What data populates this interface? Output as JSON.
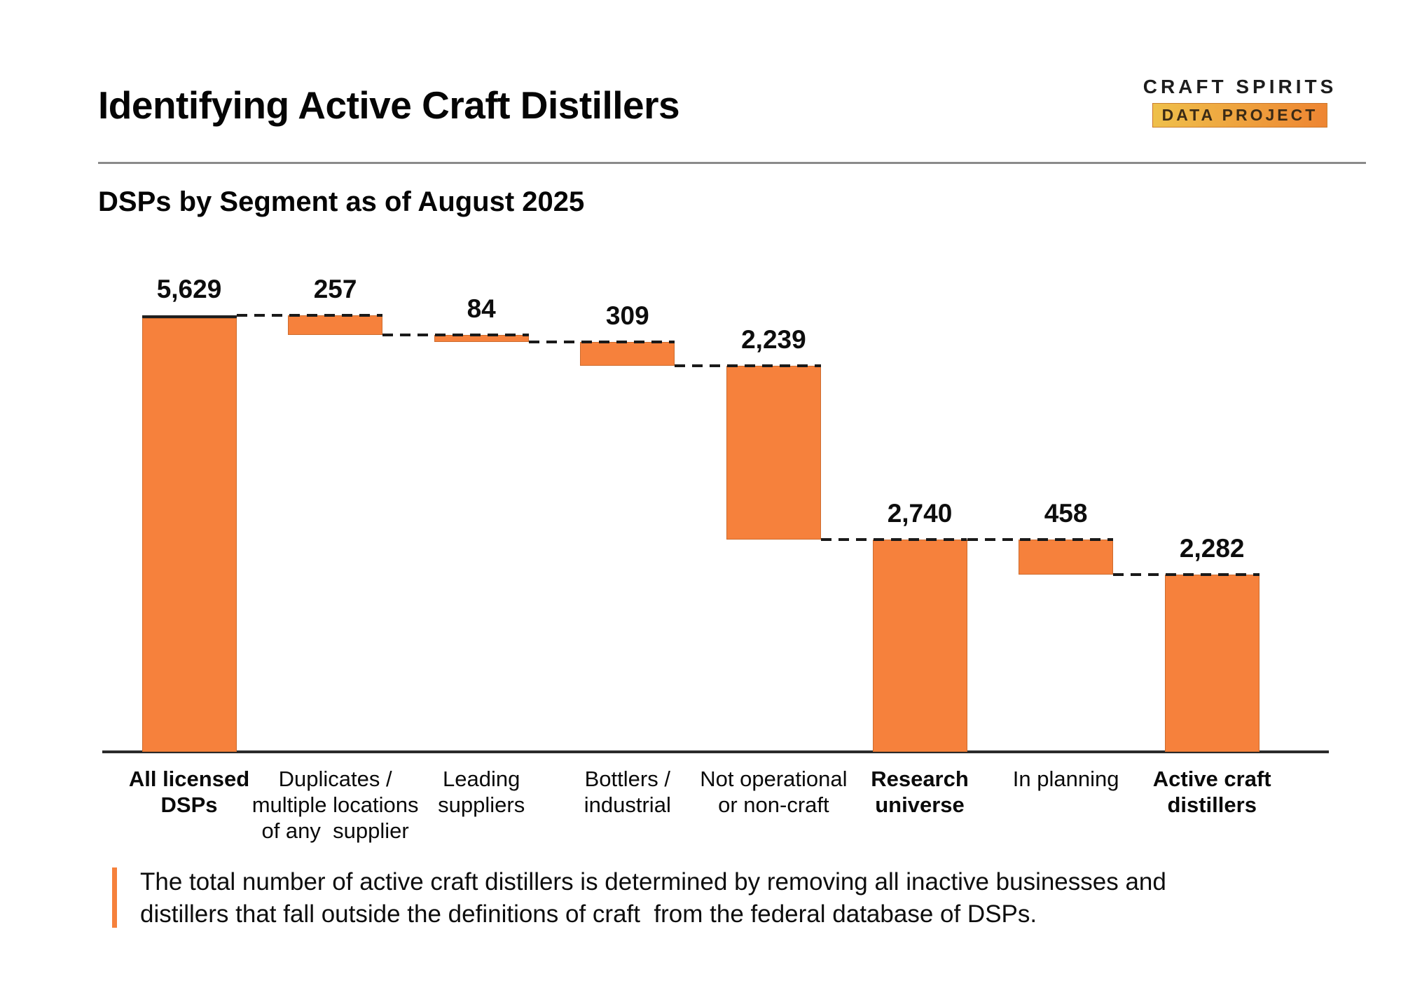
{
  "page": {
    "title": "Identifying Active Craft Distillers",
    "subtitle": "DSPs by Segment as of August 2025"
  },
  "logo": {
    "top_line": "CRAFT SPIRITS",
    "box_line": "DATA PROJECT",
    "box_gradient_start": "#efc04b",
    "box_gradient_end": "#ee8532"
  },
  "chart_data": {
    "type": "bar",
    "subtype": "waterfall",
    "title": "DSPs by Segment as of August 2025",
    "xlabel": "",
    "ylabel": "",
    "ylim": [
      0,
      5629
    ],
    "grid": false,
    "legend": "none",
    "bar_color": "#f6813c",
    "connector_color": "#1a1a1a",
    "connector_style": "dashed",
    "axis_color": "#2b2b2b",
    "categories": [
      "All licensed DSPs",
      "Duplicates / multiple locations of any supplier",
      "Leading suppliers",
      "Bottlers / industrial",
      "Not operational or non-craft",
      "Research universe",
      "In planning",
      "Active craft distillers"
    ],
    "bars": [
      {
        "kind": "total",
        "value": 5629,
        "display": "5,629",
        "bold": true,
        "label_lines": [
          "All licensed",
          "DSPs"
        ]
      },
      {
        "kind": "decrease",
        "value": 257,
        "display": "257",
        "bold": false,
        "label_lines": [
          "Duplicates /",
          "multiple locations",
          "of any  supplier"
        ]
      },
      {
        "kind": "decrease",
        "value": 84,
        "display": "84",
        "bold": false,
        "label_lines": [
          "Leading",
          "suppliers"
        ]
      },
      {
        "kind": "decrease",
        "value": 309,
        "display": "309",
        "bold": false,
        "label_lines": [
          "Bottlers /",
          "industrial"
        ]
      },
      {
        "kind": "decrease",
        "value": 2239,
        "display": "2,239",
        "bold": false,
        "label_lines": [
          "Not operational",
          "or non-craft"
        ]
      },
      {
        "kind": "total",
        "value": 2740,
        "display": "2,740",
        "bold": true,
        "label_lines": [
          "Research",
          "universe"
        ]
      },
      {
        "kind": "decrease",
        "value": 458,
        "display": "458",
        "bold": false,
        "label_lines": [
          "In planning"
        ]
      },
      {
        "kind": "total",
        "value": 2282,
        "display": "2,282",
        "bold": true,
        "label_lines": [
          "Active craft",
          "distillers"
        ]
      }
    ]
  },
  "footnote": {
    "accent_color": "#f6813c",
    "lines": [
      "The total number of active craft distillers is determined by removing all inactive businesses and",
      "distillers that fall outside the definitions of craft  from the federal database of DSPs."
    ]
  }
}
